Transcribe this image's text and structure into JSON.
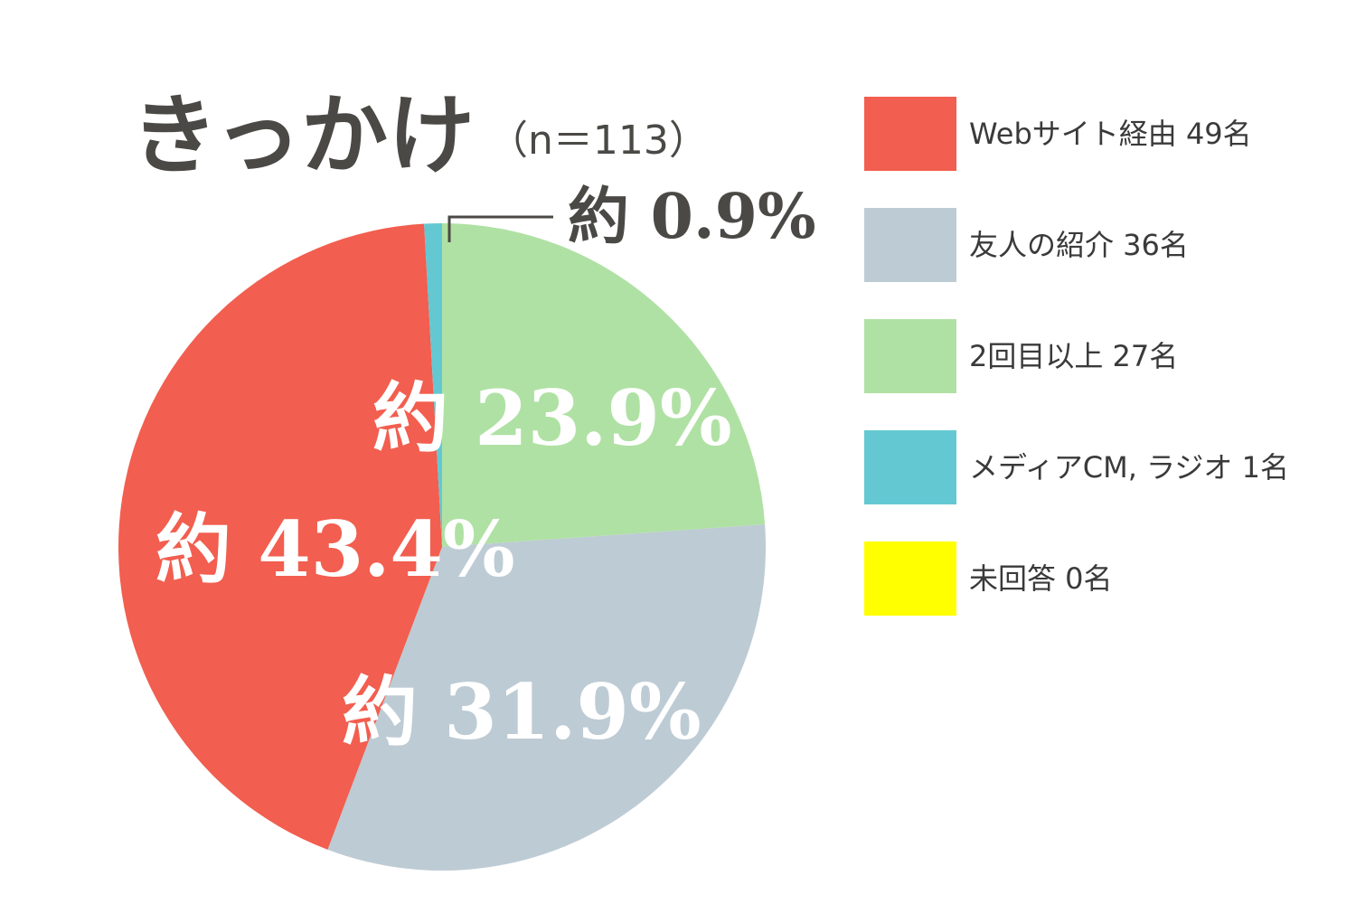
{
  "chart_data": {
    "type": "pie",
    "title": "きっかけ",
    "subtitle": "（n＝113）",
    "slices": [
      {
        "label": "Webサイト経由",
        "count": 49,
        "percent": 43.4,
        "percent_label": "約 43.4%",
        "color": "#f25e4f"
      },
      {
        "label": "友人の紹介",
        "count": 36,
        "percent": 31.9,
        "percent_label": "約 31.9%",
        "color": "#bdcbd4"
      },
      {
        "label": "2回目以上",
        "count": 27,
        "percent": 23.9,
        "percent_label": "約 23.9%",
        "color": "#b0e1a4"
      },
      {
        "label": "メディアCM, ラジオ",
        "count": 1,
        "percent": 0.9,
        "percent_label": "約 0.9%",
        "color": "#64c8d2"
      },
      {
        "label": "未回答",
        "count": 0,
        "percent": 0,
        "percent_label": "",
        "color": "#ffff00"
      }
    ],
    "legend": {
      "placement": "right",
      "entries": [
        "Webサイト経由 49名",
        "友人の紹介 36名",
        "2回目以上 27名",
        "メディアCM, ラジオ 1名",
        "未回答 0名"
      ]
    }
  }
}
